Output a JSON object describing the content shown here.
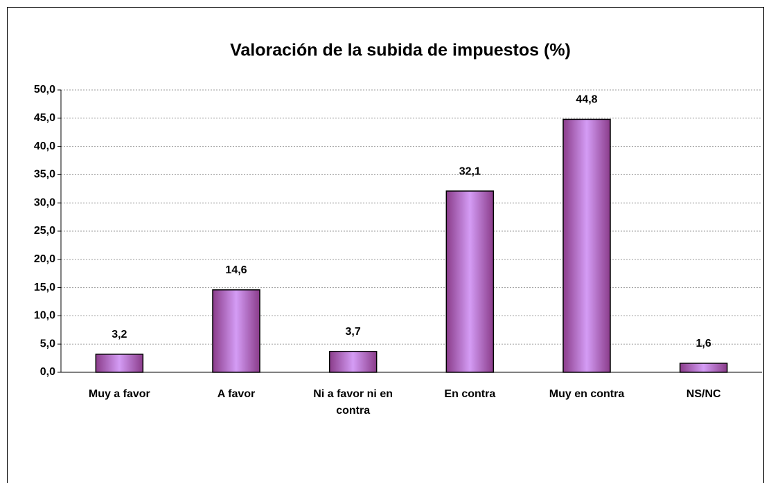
{
  "chart_data": {
    "type": "bar",
    "title": "Valoración de la subida de impuestos (%)",
    "categories": [
      "Muy a favor",
      "A favor",
      "Ni a favor ni en contra",
      "En contra",
      "Muy en contra",
      "NS/NC"
    ],
    "values": [
      3.2,
      14.6,
      3.7,
      32.1,
      44.8,
      1.6
    ],
    "value_labels": [
      "3,2",
      "14,6",
      "3,7",
      "32,1",
      "44,8",
      "1,6"
    ],
    "color": "#d49cf5",
    "ylim": [
      0,
      50
    ],
    "yticks": [
      {
        "value": 0,
        "label": "0,0"
      },
      {
        "value": 5,
        "label": "5,0"
      },
      {
        "value": 10,
        "label": "10,0"
      },
      {
        "value": 15,
        "label": "15,0"
      },
      {
        "value": 20,
        "label": "20,0"
      },
      {
        "value": 25,
        "label": "25,0"
      },
      {
        "value": 30,
        "label": "30,0"
      },
      {
        "value": 35,
        "label": "35,0"
      },
      {
        "value": 40,
        "label": "40,0"
      },
      {
        "value": 45,
        "label": "45,0"
      },
      {
        "value": 50,
        "label": "50,0"
      }
    ],
    "grid": true
  }
}
